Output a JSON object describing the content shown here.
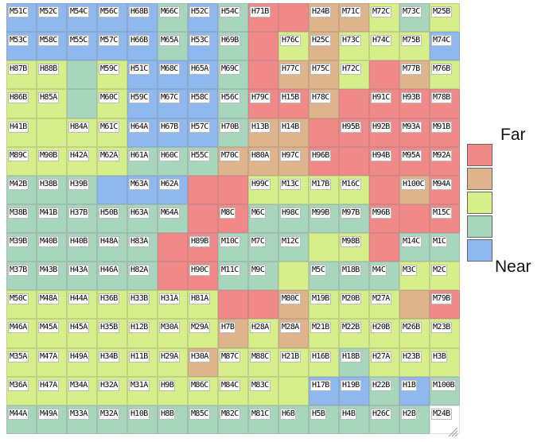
{
  "chart_data": {
    "type": "heatmap",
    "legend": {
      "top_label": "Far",
      "bottom_label": "Near",
      "levels": [
        "Far",
        "",
        "",
        "",
        "Near"
      ]
    },
    "palette": {
      "0": "#ffffff",
      "1": "#f08a88",
      "2": "#ddb48b",
      "3": "#d6ef8a",
      "4": "#a8d6bd",
      "5": "#8fb8ee"
    },
    "rows": [
      [
        "M51C",
        "M52C",
        "M54C",
        "M56C",
        "H68B",
        "M66C",
        "H52C",
        "H54C",
        "H71B",
        "",
        "H24B",
        "M71C",
        "M72C",
        "M73C",
        "M25B"
      ],
      [
        "M53C",
        "M58C",
        "M55C",
        "M57C",
        "H66B",
        "M65A",
        "H53C",
        "H69B",
        "",
        "H76C",
        "H25C",
        "H73C",
        "H74C",
        "M75B",
        "M74C"
      ],
      [
        "H87B",
        "H88B",
        "",
        "M59C",
        "H51C",
        "M68C",
        "H65A",
        "M69C",
        "",
        "H77C",
        "H75C",
        "H72C",
        "",
        "M77B",
        "M76B"
      ],
      [
        "H86B",
        "H85A",
        "",
        "M60C",
        "H59C",
        "M67C",
        "H58C",
        "H56C",
        "H79C",
        "H15B",
        "H78C",
        "",
        "H91C",
        "H93B",
        "M78B"
      ],
      [
        "H41B",
        "",
        "H84A",
        "M61C",
        "H64A",
        "H67B",
        "H57C",
        "H70B",
        "H13B",
        "H14B",
        "",
        "H95B",
        "H92B",
        "M93A",
        "M91B"
      ],
      [
        "M89C",
        "M90B",
        "H42A",
        "M62A",
        "H61A",
        "H60C",
        "H55C",
        "M70C",
        "H80A",
        "H97C",
        "H96B",
        "",
        "H94B",
        "M95A",
        "M92A"
      ],
      [
        "M42B",
        "H38B",
        "H39B",
        "",
        "M63A",
        "H62A",
        "",
        "",
        "H99C",
        "M13C",
        "M17B",
        "M16C",
        "",
        "H100C",
        "M94A"
      ],
      [
        "M38B",
        "M41B",
        "H37B",
        "H50B",
        "H63A",
        "M64A",
        "",
        "M8C",
        "M6C",
        "H98C",
        "M99B",
        "M97B",
        "M96B",
        "",
        "M15C"
      ],
      [
        "M39B",
        "M40B",
        "H40B",
        "H48A",
        "H83A",
        "",
        "H89B",
        "M10C",
        "M7C",
        "M12C",
        "",
        "M98B",
        "",
        "M14C",
        "M1C"
      ],
      [
        "M37B",
        "M43B",
        "H43A",
        "H46A",
        "H82A",
        "",
        "H90C",
        "M11C",
        "M9C",
        "",
        "M5C",
        "M18B",
        "M4C",
        "M3C",
        "M2C"
      ],
      [
        "M50C",
        "M48A",
        "H44A",
        "H36B",
        "H33B",
        "H31A",
        "H81A",
        "",
        "",
        "M80C",
        "M19B",
        "M20B",
        "M27A",
        "",
        "M79B"
      ],
      [
        "M46A",
        "M45A",
        "H45A",
        "H35B",
        "H12B",
        "M30A",
        "M29A",
        "H7B",
        "H28A",
        "M28A",
        "M21B",
        "M22B",
        "H20B",
        "M26B",
        "M23B"
      ],
      [
        "M35A",
        "M47A",
        "H49A",
        "H34B",
        "H11B",
        "H29A",
        "H30A",
        "M87C",
        "M88C",
        "H21B",
        "H16B",
        "H18B",
        "H27A",
        "H23B",
        "H3B"
      ],
      [
        "M36A",
        "H47A",
        "M34A",
        "H32A",
        "M31A",
        "H9B",
        "M86C",
        "M84C",
        "M83C",
        "",
        "H17B",
        "H19B",
        "H22B",
        "H1B",
        "M100B"
      ],
      [
        "M44A",
        "M49A",
        "M33A",
        "M32A",
        "H10B",
        "H8B",
        "M85C",
        "M82C",
        "M81C",
        "H6B",
        "H5B",
        "H4B",
        "H26C",
        "H2B",
        "M24B"
      ]
    ],
    "levels_grid": [
      [
        5,
        5,
        5,
        5,
        5,
        4,
        5,
        4,
        1,
        1,
        2,
        2,
        3,
        4,
        3
      ],
      [
        5,
        5,
        5,
        5,
        5,
        4,
        5,
        4,
        1,
        3,
        2,
        3,
        3,
        3,
        5
      ],
      [
        3,
        3,
        4,
        3,
        5,
        5,
        5,
        4,
        1,
        2,
        2,
        3,
        1,
        2,
        3
      ],
      [
        3,
        3,
        4,
        3,
        5,
        5,
        5,
        4,
        1,
        1,
        2,
        1,
        1,
        1,
        1
      ],
      [
        3,
        3,
        3,
        3,
        5,
        5,
        5,
        4,
        2,
        2,
        1,
        1,
        1,
        1,
        1
      ],
      [
        3,
        3,
        3,
        3,
        4,
        4,
        4,
        2,
        2,
        2,
        1,
        1,
        1,
        1,
        1
      ],
      [
        4,
        4,
        4,
        5,
        5,
        5,
        1,
        1,
        3,
        3,
        3,
        3,
        1,
        2,
        1
      ],
      [
        4,
        4,
        4,
        4,
        4,
        4,
        1,
        1,
        4,
        4,
        4,
        4,
        1,
        1,
        1
      ],
      [
        4,
        4,
        4,
        4,
        4,
        1,
        1,
        4,
        4,
        4,
        3,
        3,
        1,
        4,
        4
      ],
      [
        4,
        4,
        4,
        4,
        4,
        1,
        1,
        4,
        4,
        3,
        4,
        4,
        4,
        3,
        3
      ],
      [
        3,
        3,
        3,
        3,
        3,
        3,
        3,
        1,
        1,
        2,
        3,
        3,
        3,
        2,
        1
      ],
      [
        3,
        3,
        3,
        3,
        3,
        3,
        3,
        2,
        3,
        2,
        3,
        3,
        3,
        3,
        3
      ],
      [
        3,
        3,
        3,
        3,
        3,
        3,
        2,
        3,
        3,
        3,
        3,
        4,
        3,
        3,
        3
      ],
      [
        3,
        3,
        3,
        3,
        3,
        3,
        3,
        3,
        3,
        3,
        5,
        5,
        4,
        5,
        4
      ],
      [
        4,
        4,
        4,
        4,
        4,
        4,
        4,
        4,
        4,
        4,
        4,
        4,
        4,
        4,
        0
      ]
    ]
  }
}
